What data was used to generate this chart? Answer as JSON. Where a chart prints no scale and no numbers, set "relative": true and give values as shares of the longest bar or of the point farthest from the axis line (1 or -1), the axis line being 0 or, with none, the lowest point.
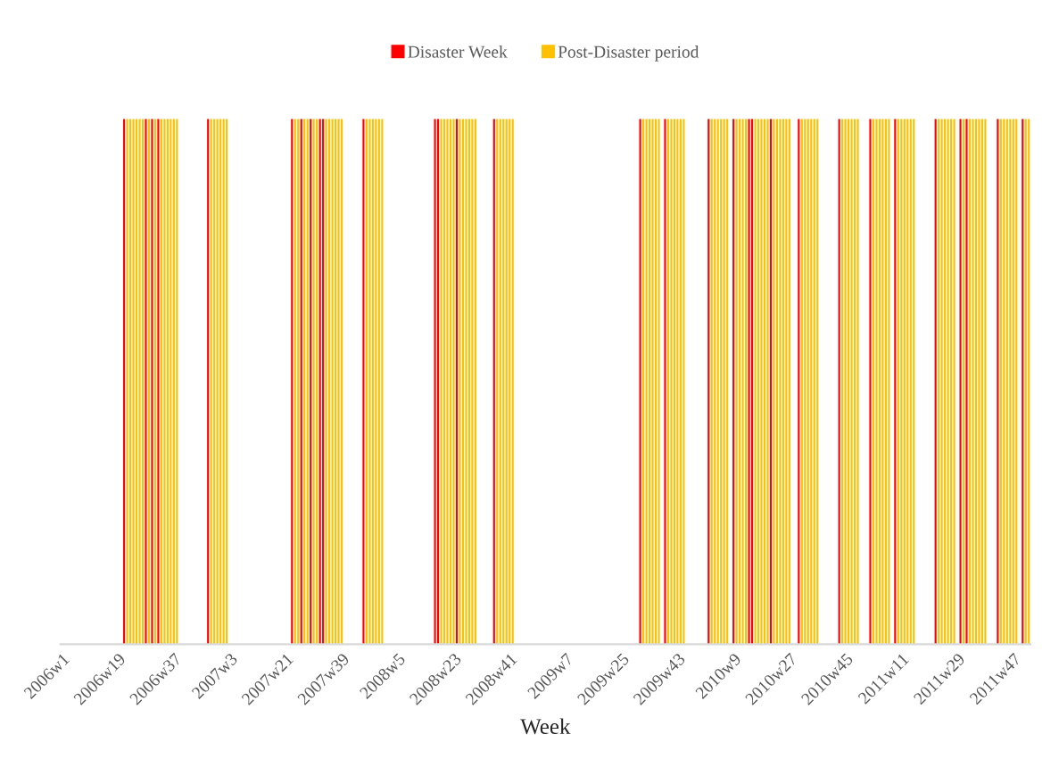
{
  "chart_data": {
    "type": "bar",
    "relative": true,
    "xlabel": "Week",
    "legend": "top",
    "tick_labels": "x",
    "categories": [
      "2006w1",
      null,
      null,
      null,
      null,
      null,
      null,
      null,
      null,
      null,
      null,
      null,
      null,
      null,
      null,
      null,
      null,
      null,
      "2006w19",
      null,
      null,
      null,
      null,
      null,
      null,
      null,
      null,
      null,
      null,
      null,
      null,
      null,
      null,
      null,
      null,
      null,
      "2006w37",
      null,
      null,
      null,
      null,
      null,
      null,
      null,
      null,
      null,
      null,
      null,
      null,
      null,
      null,
      null,
      null,
      null,
      "2007w3",
      null,
      null,
      null,
      null,
      null,
      null,
      null,
      null,
      null,
      null,
      null,
      null,
      null,
      null,
      null,
      null,
      null,
      "2007w21",
      null,
      null,
      null,
      null,
      null,
      null,
      null,
      null,
      null,
      null,
      null,
      null,
      null,
      null,
      null,
      null,
      null,
      "2007w39",
      null,
      null,
      null,
      null,
      null,
      null,
      null,
      null,
      null,
      null,
      null,
      null,
      null,
      null,
      null,
      null,
      null,
      "2008w5",
      null,
      null,
      null,
      null,
      null,
      null,
      null,
      null,
      null,
      null,
      null,
      null,
      null,
      null,
      null,
      null,
      null,
      "2008w23",
      null,
      null,
      null,
      null,
      null,
      null,
      null,
      null,
      null,
      null,
      null,
      null,
      null,
      null,
      null,
      null,
      null,
      "2008w41",
      null,
      null,
      null,
      null,
      null,
      null,
      null,
      null,
      null,
      null,
      null,
      null,
      null,
      null,
      null,
      null,
      null,
      "2009w7",
      null,
      null,
      null,
      null,
      null,
      null,
      null,
      null,
      null,
      null,
      null,
      null,
      null,
      null,
      null,
      null,
      null,
      "2009w25",
      null,
      null,
      null,
      null,
      null,
      null,
      null,
      null,
      null,
      null,
      null,
      null,
      null,
      null,
      null,
      null,
      null,
      "2009w43",
      null,
      null,
      null,
      null,
      null,
      null,
      null,
      null,
      null,
      null,
      null,
      null,
      null,
      null,
      null,
      null,
      null,
      "2010w9",
      null,
      null,
      null,
      null,
      null,
      null,
      null,
      null,
      null,
      null,
      null,
      null,
      null,
      null,
      null,
      null,
      null,
      "2010w27",
      null,
      null,
      null,
      null,
      null,
      null,
      null,
      null,
      null,
      null,
      null,
      null,
      null,
      null,
      null,
      null,
      null,
      "2010w45",
      null,
      null,
      null,
      null,
      null,
      null,
      null,
      null,
      null,
      null,
      null,
      null,
      null,
      null,
      null,
      null,
      null,
      "2011w11",
      null,
      null,
      null,
      null,
      null,
      null,
      null,
      null,
      null,
      null,
      null,
      null,
      null,
      null,
      null,
      null,
      null,
      "2011w29",
      null,
      null,
      null,
      null,
      null,
      null,
      null,
      null,
      null,
      null,
      null,
      null,
      null,
      null,
      null,
      null,
      null,
      "2011w47",
      null,
      null,
      null,
      null,
      null
    ],
    "series": [
      {
        "name": "Disaster Week",
        "color": "#ff0000",
        "values": [
          null,
          null,
          null,
          null,
          null,
          null,
          null,
          null,
          null,
          null,
          null,
          null,
          null,
          null,
          null,
          null,
          null,
          null,
          null,
          null,
          1,
          null,
          null,
          null,
          null,
          null,
          null,
          1,
          null,
          1,
          null,
          1,
          null,
          null,
          null,
          null,
          null,
          null,
          null,
          null,
          null,
          null,
          null,
          null,
          null,
          null,
          null,
          1,
          null,
          null,
          null,
          null,
          null,
          null,
          null,
          null,
          null,
          null,
          null,
          null,
          null,
          null,
          null,
          null,
          null,
          null,
          null,
          null,
          null,
          null,
          null,
          null,
          null,
          null,
          1,
          null,
          null,
          1,
          null,
          null,
          1,
          null,
          null,
          1,
          1,
          null,
          null,
          null,
          null,
          null,
          null,
          null,
          null,
          null,
          null,
          null,
          null,
          1,
          null,
          null,
          null,
          null,
          null,
          null,
          null,
          null,
          null,
          null,
          null,
          null,
          null,
          null,
          null,
          null,
          null,
          null,
          null,
          null,
          null,
          null,
          1,
          1,
          null,
          null,
          null,
          null,
          null,
          1,
          null,
          null,
          null,
          null,
          null,
          null,
          null,
          null,
          null,
          null,
          null,
          1,
          null,
          null,
          null,
          null,
          null,
          null,
          null,
          null,
          null,
          null,
          null,
          null,
          null,
          null,
          null,
          null,
          null,
          null,
          null,
          null,
          null,
          null,
          null,
          null,
          null,
          null,
          null,
          null,
          null,
          null,
          null,
          null,
          null,
          null,
          null,
          null,
          null,
          null,
          null,
          null,
          null,
          null,
          null,
          null,
          null,
          null,
          1,
          null,
          null,
          null,
          null,
          null,
          null,
          null,
          1,
          null,
          null,
          null,
          null,
          null,
          null,
          null,
          null,
          null,
          null,
          null,
          null,
          null,
          1,
          null,
          null,
          null,
          null,
          null,
          null,
          null,
          1,
          null,
          null,
          null,
          null,
          1,
          1,
          null,
          null,
          null,
          null,
          null,
          1,
          null,
          null,
          null,
          null,
          null,
          null,
          null,
          null,
          1,
          null,
          null,
          null,
          null,
          null,
          null,
          null,
          null,
          null,
          null,
          null,
          null,
          1,
          null,
          null,
          null,
          null,
          null,
          null,
          null,
          null,
          null,
          1,
          null,
          null,
          null,
          null,
          null,
          null,
          null,
          1,
          null,
          null,
          null,
          null,
          null,
          null,
          null,
          null,
          null,
          null,
          null,
          null,
          1,
          null,
          null,
          null,
          null,
          null,
          null,
          null,
          1,
          null,
          1,
          null,
          null,
          null,
          null,
          null,
          null,
          null,
          null,
          null,
          1,
          null,
          null,
          null,
          null,
          null,
          null,
          null,
          1,
          null,
          null
        ]
      },
      {
        "name": "Post-Disaster period",
        "color": "#ffc000",
        "values": [
          null,
          null,
          null,
          null,
          null,
          null,
          null,
          null,
          null,
          null,
          null,
          null,
          null,
          null,
          null,
          null,
          null,
          null,
          null,
          null,
          null,
          1,
          1,
          1,
          1,
          1,
          1,
          null,
          1,
          null,
          1,
          null,
          1,
          1,
          1,
          1,
          1,
          1,
          null,
          null,
          null,
          null,
          null,
          null,
          null,
          null,
          null,
          null,
          1,
          1,
          1,
          1,
          1,
          1,
          null,
          null,
          null,
          null,
          null,
          null,
          null,
          null,
          null,
          null,
          null,
          null,
          null,
          null,
          null,
          null,
          null,
          null,
          null,
          null,
          null,
          1,
          1,
          null,
          1,
          1,
          null,
          1,
          1,
          null,
          null,
          1,
          1,
          1,
          1,
          1,
          1,
          null,
          null,
          null,
          null,
          null,
          null,
          null,
          1,
          1,
          1,
          1,
          1,
          1,
          null,
          null,
          null,
          null,
          null,
          null,
          null,
          null,
          null,
          null,
          null,
          null,
          null,
          null,
          null,
          null,
          null,
          null,
          1,
          1,
          1,
          1,
          1,
          null,
          1,
          1,
          1,
          1,
          1,
          1,
          null,
          null,
          null,
          null,
          null,
          null,
          1,
          1,
          1,
          1,
          1,
          1,
          null,
          null,
          null,
          null,
          null,
          null,
          null,
          null,
          null,
          null,
          null,
          null,
          null,
          null,
          null,
          null,
          null,
          null,
          null,
          null,
          null,
          null,
          null,
          null,
          null,
          null,
          null,
          null,
          null,
          null,
          null,
          null,
          null,
          null,
          null,
          null,
          null,
          null,
          null,
          null,
          null,
          1,
          1,
          1,
          1,
          1,
          1,
          null,
          null,
          1,
          1,
          1,
          1,
          1,
          1,
          null,
          null,
          null,
          null,
          null,
          null,
          null,
          null,
          1,
          1,
          1,
          1,
          1,
          1,
          null,
          null,
          1,
          1,
          1,
          1,
          null,
          null,
          1,
          1,
          1,
          1,
          1,
          null,
          1,
          1,
          1,
          1,
          1,
          1,
          null,
          null,
          null,
          1,
          1,
          1,
          1,
          1,
          1,
          null,
          null,
          null,
          null,
          null,
          null,
          null,
          1,
          1,
          1,
          1,
          1,
          1,
          null,
          null,
          null,
          null,
          1,
          1,
          1,
          1,
          1,
          1,
          null,
          null,
          1,
          1,
          1,
          1,
          1,
          1,
          null,
          null,
          null,
          null,
          null,
          null,
          null,
          1,
          1,
          1,
          1,
          1,
          1,
          null,
          null,
          1,
          null,
          1,
          1,
          1,
          1,
          1,
          1,
          null,
          null,
          null,
          null,
          1,
          1,
          1,
          1,
          1,
          1,
          null,
          null,
          1,
          1
        ]
      }
    ]
  }
}
